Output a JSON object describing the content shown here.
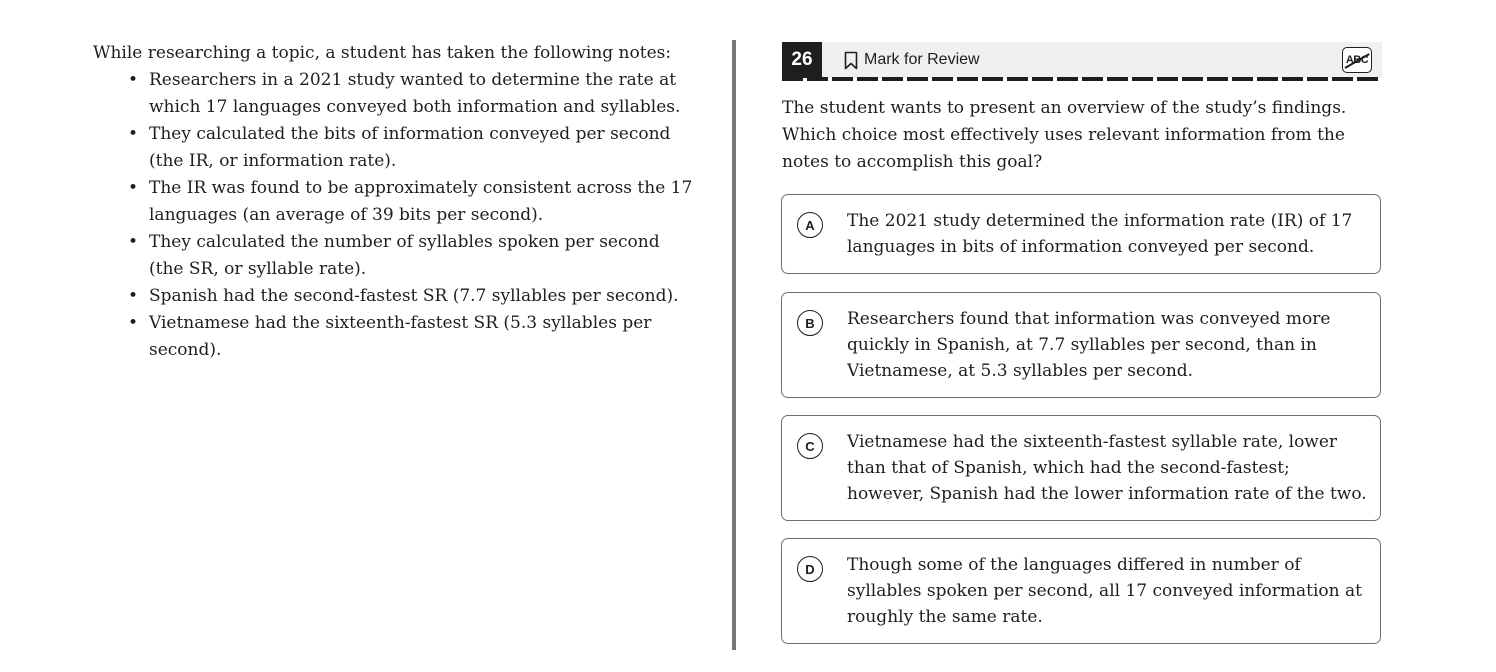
{
  "passage": {
    "intro": "While researching a topic, a student has taken the following notes:",
    "notes": [
      "Researchers in a 2021 study wanted to determine the rate at which 17 languages conveyed both information and syllables.",
      "They calculated the bits of information conveyed per second (the IR, or information rate).",
      "The IR was found to be approximately consistent across the 17 languages (an average of 39 bits per second).",
      "They calculated the number of syllables spoken per second (the SR, or syllable rate).",
      "Spanish had the second-fastest SR (7.7 syllables per second).",
      "Vietnamese had the sixteenth-fastest SR (5.3 syllables per second)."
    ]
  },
  "question_header": {
    "number": "26",
    "mark_for_review_label": "Mark for Review",
    "abc_label": "ABC"
  },
  "question_text": "The student wants to present an overview of the study’s findings. Which choice most effectively uses relevant information from the notes to accomplish this goal?",
  "options": [
    {
      "letter": "A",
      "text": "The 2021 study determined the information rate (IR) of 17 languages in bits of information conveyed per second."
    },
    {
      "letter": "B",
      "text": "Researchers found that information was conveyed more quickly in Spanish, at 7.7 syllables per second, than in Vietnamese, at 5.3 syllables per second."
    },
    {
      "letter": "C",
      "text": "Vietnamese had the sixteenth-fastest syllable rate, lower than that of Spanish, which had the second-fastest; however, Spanish had the lower information rate of the two."
    },
    {
      "letter": "D",
      "text": "Though some of the languages differed in number of syllables spoken per second, all 17 conveyed information at roughly the same rate."
    }
  ]
}
